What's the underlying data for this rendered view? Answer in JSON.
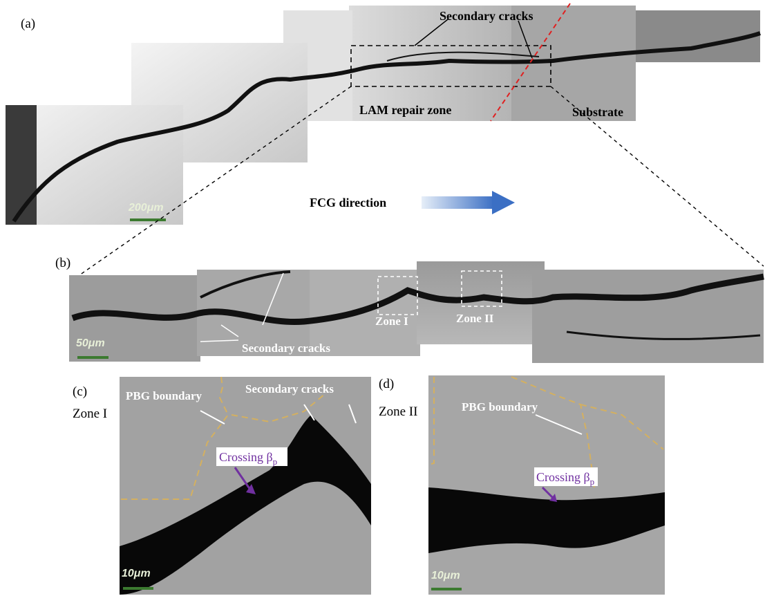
{
  "panel_a": {
    "label": "(a)",
    "secondary_cracks": "Secondary cracks",
    "repair_zone": "LAM repair zone",
    "substrate": "Substrate",
    "scale_bar": "200μm",
    "direction": "FCG direction"
  },
  "panel_b": {
    "label": "(b)",
    "scale_bar": "50μm",
    "zone_1": "Zone I",
    "zone_2": "Zone II",
    "secondary_cracks": "Secondary cracks"
  },
  "panel_c": {
    "label": "(c)",
    "zone": "Zone I",
    "boundary": "PBG boundary",
    "secondary_cracks": "Secondary cracks",
    "crossing": "Crossing β",
    "crossing_sub": "p",
    "scale_bar": "10μm"
  },
  "panel_d": {
    "label": "(d)",
    "zone": "Zone II",
    "boundary": "PBG boundary",
    "crossing": "Crossing β",
    "crossing_sub": "p",
    "scale_bar": "10μm"
  }
}
